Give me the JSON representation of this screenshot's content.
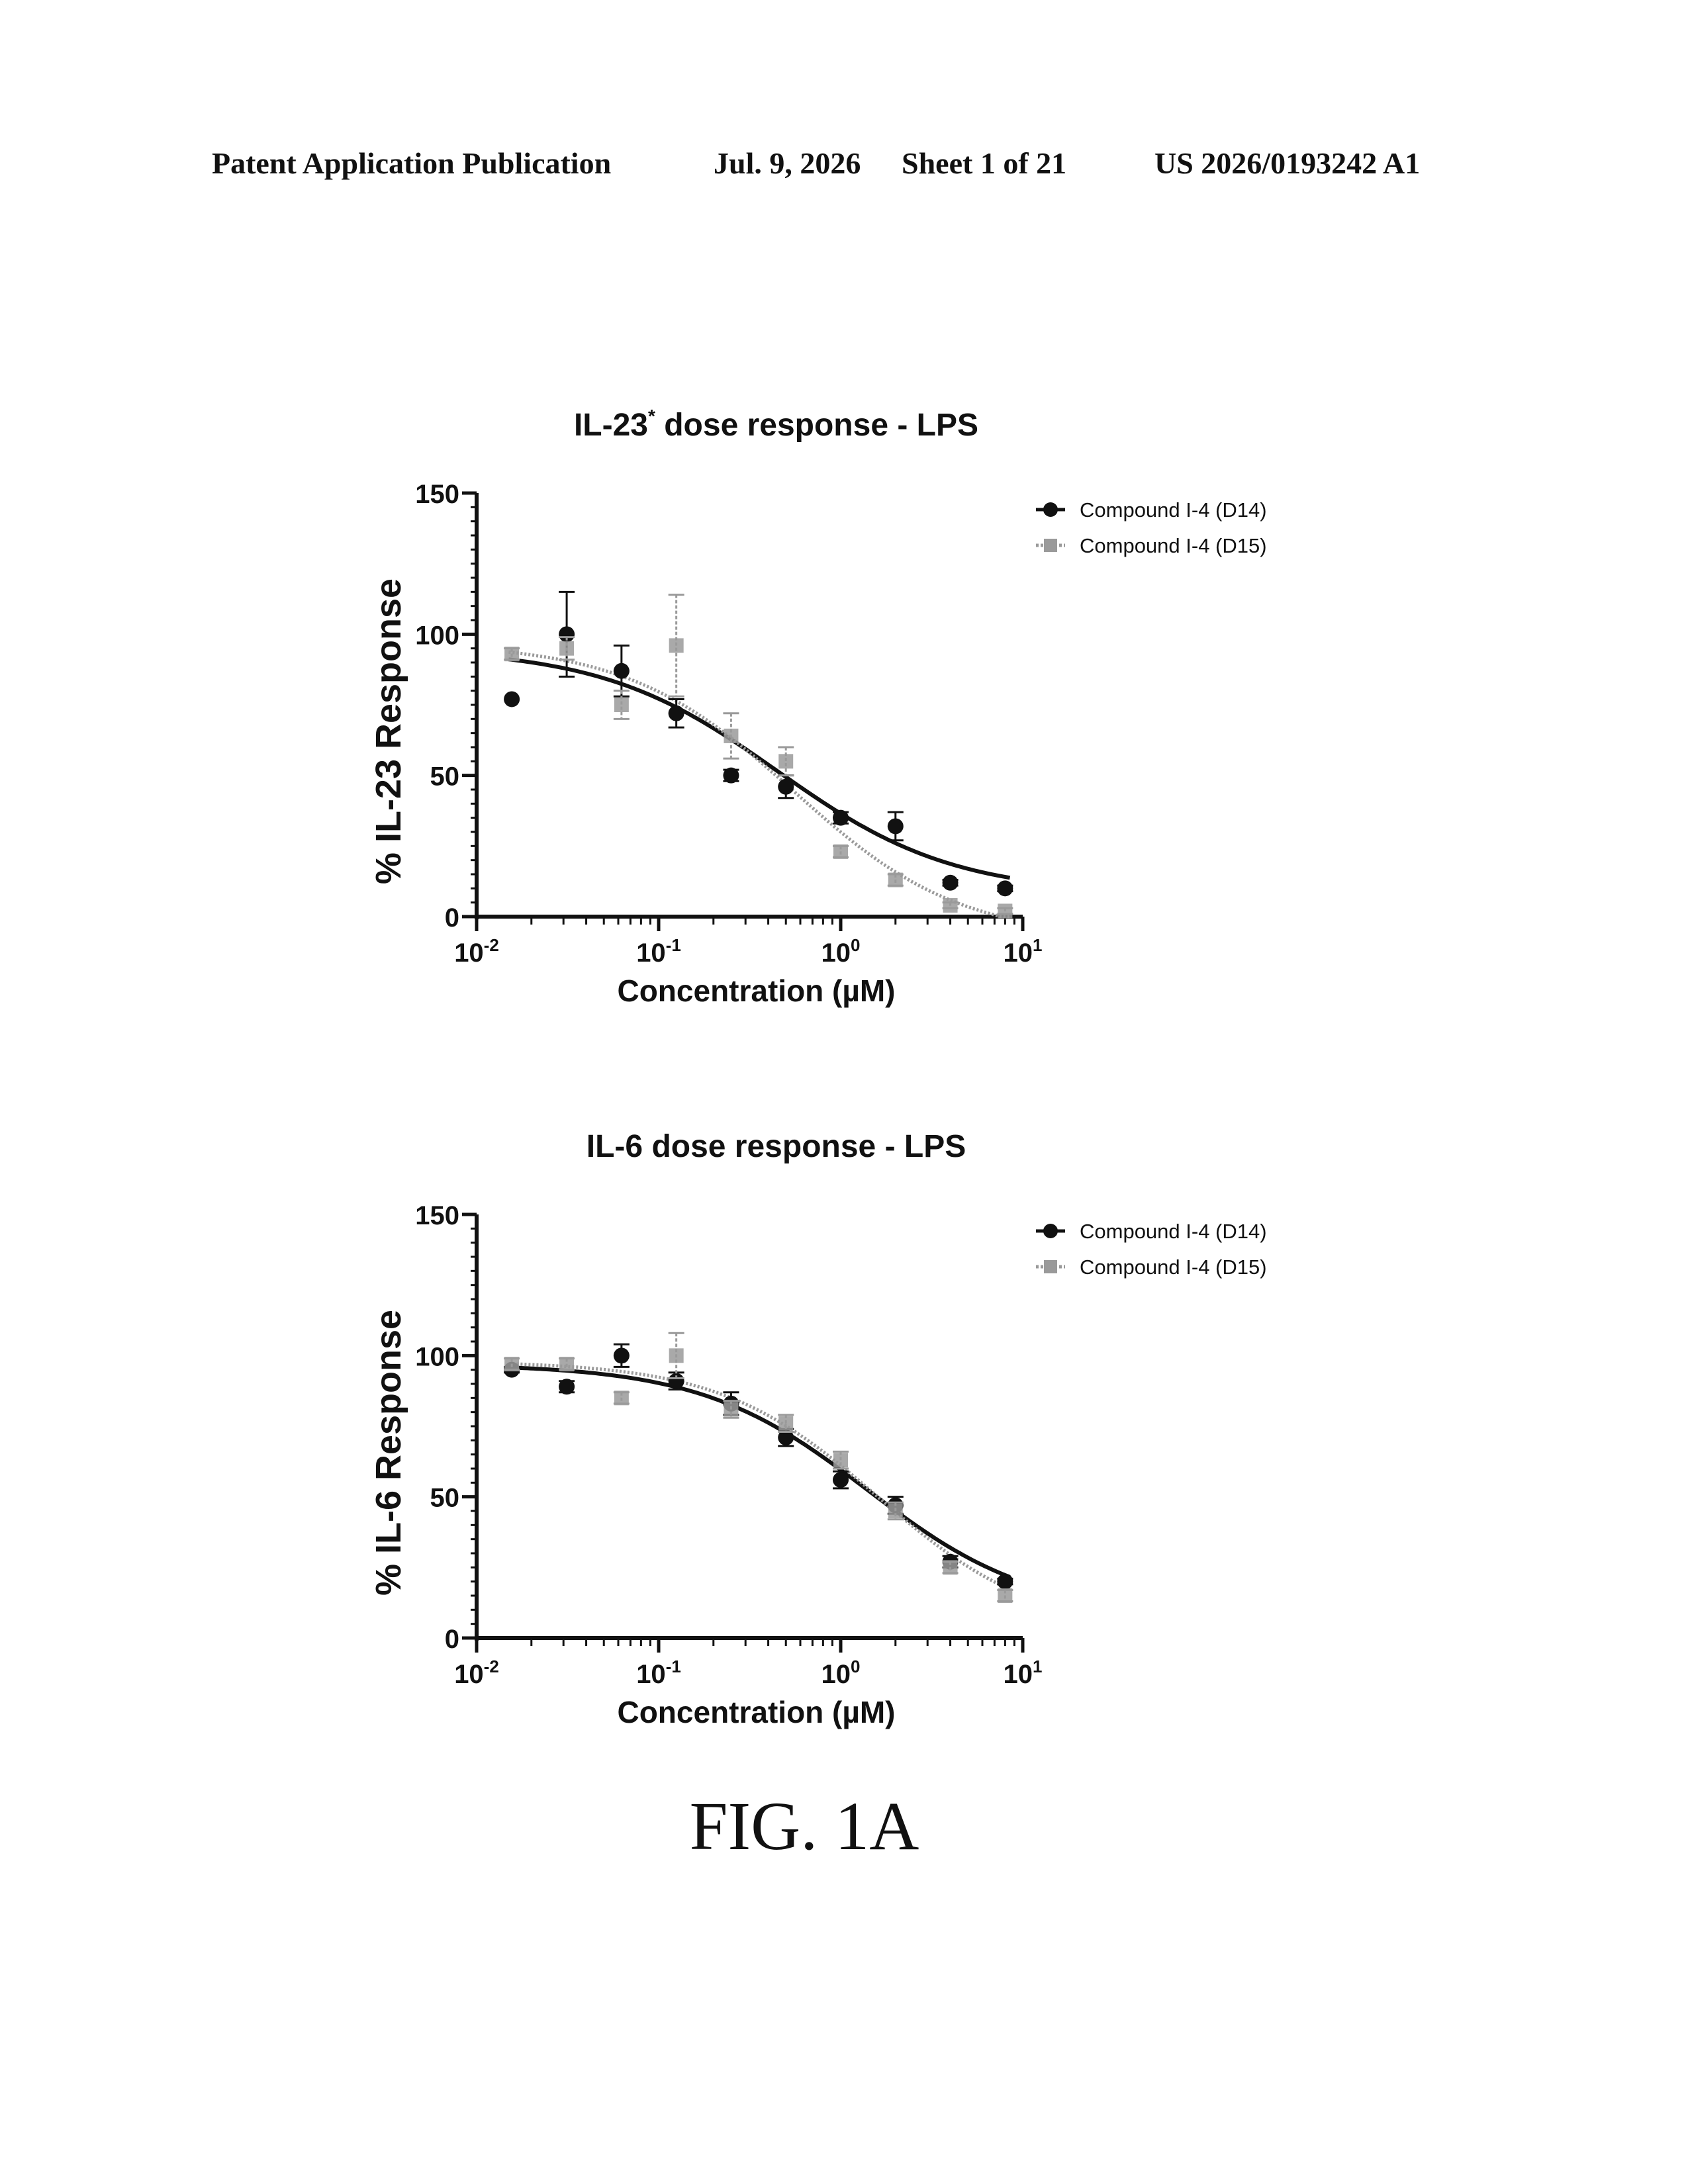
{
  "header": {
    "left": "Patent Application Publication",
    "date": "Jul. 9, 2026",
    "sheet": "Sheet 1 of 21",
    "number": "US 2026/0193242 A1"
  },
  "figure_label": "FIG. 1A",
  "colors": {
    "d14": "#111111",
    "d15": "#9a9a9a"
  },
  "chart_data": [
    {
      "type": "scatter",
      "title_main": "IL-23",
      "title_sup": "*",
      "title_rest": " dose response - LPS",
      "xlabel": "Concentration (µM)",
      "ylabel": "% IL-23 Response",
      "xscale": "log",
      "xlim": [
        0.01,
        10
      ],
      "ylim": [
        0,
        150
      ],
      "yticks": [
        0,
        50,
        100,
        150
      ],
      "xticks": [
        {
          "value": 0.01,
          "base": "10",
          "exp": "-2"
        },
        {
          "value": 0.1,
          "base": "10",
          "exp": "-1"
        },
        {
          "value": 1,
          "base": "10",
          "exp": "0"
        },
        {
          "value": 10,
          "base": "10",
          "exp": "1"
        }
      ],
      "legend_position": "top-right",
      "series": [
        {
          "name": "Compound I-4 (D14)",
          "marker": "circle",
          "x": [
            0.0156,
            0.03125,
            0.0625,
            0.125,
            0.25,
            0.5,
            1,
            2,
            4,
            8
          ],
          "y": [
            77,
            100,
            87,
            72,
            50,
            46,
            35,
            32,
            12,
            10
          ],
          "err": [
            0,
            15,
            9,
            5,
            2,
            4,
            2,
            5,
            1,
            1
          ],
          "fit": {
            "top": 95,
            "bottom": 8,
            "ec50": 0.45,
            "hill": 0.9
          }
        },
        {
          "name": "Compound I-4 (D15)",
          "marker": "square",
          "x": [
            0.0156,
            0.03125,
            0.0625,
            0.125,
            0.25,
            0.5,
            1,
            2,
            4,
            8
          ],
          "y": [
            93,
            95,
            75,
            96,
            64,
            55,
            23,
            13,
            4,
            2
          ],
          "err": [
            2,
            4,
            5,
            18,
            8,
            5,
            2,
            2,
            1,
            1
          ],
          "fit": {
            "top": 97,
            "bottom": -8,
            "ec50": 0.55,
            "hill": 0.95
          }
        }
      ]
    },
    {
      "type": "scatter",
      "title_main": "IL-6 dose response - LPS",
      "title_sup": "",
      "title_rest": "",
      "xlabel": "Concentration (µM)",
      "ylabel": "% IL-6 Response",
      "xscale": "log",
      "xlim": [
        0.01,
        10
      ],
      "ylim": [
        0,
        150
      ],
      "yticks": [
        0,
        50,
        100,
        150
      ],
      "xticks": [
        {
          "value": 0.01,
          "base": "10",
          "exp": "-2"
        },
        {
          "value": 0.1,
          "base": "10",
          "exp": "-1"
        },
        {
          "value": 1,
          "base": "10",
          "exp": "0"
        },
        {
          "value": 10,
          "base": "10",
          "exp": "1"
        }
      ],
      "legend_position": "top-right",
      "series": [
        {
          "name": "Compound I-4 (D14)",
          "marker": "circle",
          "x": [
            0.0156,
            0.03125,
            0.0625,
            0.125,
            0.25,
            0.5,
            1,
            2,
            4,
            8
          ],
          "y": [
            95,
            89,
            100,
            91,
            83,
            71,
            56,
            47,
            27,
            20
          ],
          "err": [
            1,
            2,
            4,
            3,
            4,
            3,
            3,
            3,
            2,
            1
          ],
          "fit": {
            "top": 97,
            "bottom": 8,
            "ec50": 1.4,
            "hill": 0.95
          }
        },
        {
          "name": "Compound I-4 (D15)",
          "marker": "square",
          "x": [
            0.0156,
            0.03125,
            0.0625,
            0.125,
            0.25,
            0.5,
            1,
            2,
            4,
            8
          ],
          "y": [
            97,
            97,
            85,
            100,
            81,
            76,
            63,
            45,
            25,
            15
          ],
          "err": [
            2,
            2,
            2,
            8,
            3,
            3,
            3,
            3,
            2,
            2
          ],
          "fit": {
            "top": 98,
            "bottom": 2,
            "ec50": 1.6,
            "hill": 1.0
          }
        }
      ]
    }
  ]
}
